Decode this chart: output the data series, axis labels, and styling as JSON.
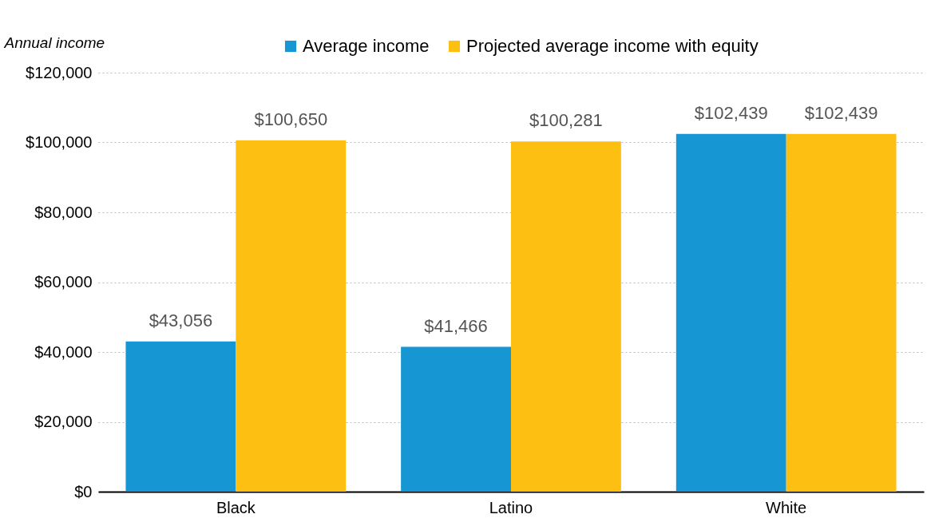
{
  "chart_data": {
    "type": "bar",
    "ylabel": "Annual income",
    "categories": [
      "Black",
      "Latino",
      "White"
    ],
    "series": [
      {
        "name": "Average income",
        "color": "#1696d2",
        "values": [
          43056,
          41466,
          102439
        ],
        "value_labels": [
          "$43,056",
          "$41,466",
          "$102,439"
        ]
      },
      {
        "name": "Projected average income with equity",
        "color": "#fdbf11",
        "values": [
          100650,
          100281,
          102439
        ],
        "value_labels": [
          "$100,650",
          "$100,281",
          "$102,439"
        ]
      }
    ],
    "ylim": [
      0,
      120000
    ],
    "yticks": [
      {
        "value": 0,
        "label": "$0"
      },
      {
        "value": 20000,
        "label": "$20,000"
      },
      {
        "value": 40000,
        "label": "$40,000"
      },
      {
        "value": 60000,
        "label": "$60,000"
      },
      {
        "value": 80000,
        "label": "$80,000"
      },
      {
        "value": 100000,
        "label": "$100,000"
      },
      {
        "value": 120000,
        "label": "$120,000"
      }
    ],
    "grid": "y",
    "legend": "top"
  }
}
